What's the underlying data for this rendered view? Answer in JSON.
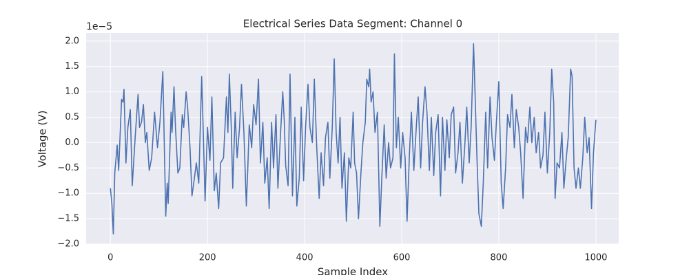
{
  "chart_data": {
    "type": "line",
    "title": "Electrical Series Data Segment: Channel 0",
    "xlabel": "Sample Index",
    "ylabel": "Voltage (V)",
    "y_offset_label": "1e−5",
    "color": "#4c72b0",
    "grid": true,
    "xlim": [
      -50,
      1047
    ],
    "ylim": [
      -2.0,
      2.16
    ],
    "xticks": [
      0,
      200,
      400,
      600,
      800,
      1000
    ],
    "yticks": [
      {
        "value": -2,
        "label": "−2.0"
      },
      {
        "value": -1.5,
        "label": "−1.5"
      },
      {
        "value": -1,
        "label": "−1.0"
      },
      {
        "value": -0.5,
        "label": "−0.5"
      },
      {
        "value": 0,
        "label": "0.0"
      },
      0.5,
      {
        "value": 1,
        "label": "1.0"
      },
      1.5,
      {
        "value": 2,
        "label": "2.0"
      }
    ],
    "x": [
      0,
      3,
      6,
      9,
      14,
      17,
      23,
      26,
      28,
      32,
      36,
      41,
      45,
      51,
      57,
      60,
      64,
      68,
      72,
      75,
      80,
      85,
      91,
      97,
      102,
      108,
      114,
      117,
      119,
      125,
      127,
      131,
      134,
      139,
      143,
      148,
      151,
      156,
      159,
      164,
      168,
      173,
      177,
      182,
      188,
      191,
      195,
      200,
      205,
      209,
      214,
      218,
      223,
      227,
      233,
      239,
      242,
      245,
      249,
      252,
      257,
      261,
      266,
      270,
      275,
      280,
      283,
      286,
      291,
      295,
      300,
      305,
      309,
      314,
      318,
      323,
      327,
      332,
      336,
      341,
      345,
      350,
      355,
      358,
      361,
      366,
      370,
      375,
      380,
      384,
      389,
      393,
      398,
      402,
      407,
      411,
      416,
      420,
      425,
      430,
      434,
      439,
      443,
      448,
      452,
      457,
      461,
      465,
      469,
      473,
      477,
      482,
      486,
      491,
      495,
      500,
      503,
      507,
      511,
      516,
      520,
      525,
      528,
      532,
      534,
      537,
      541,
      545,
      550,
      555,
      559,
      564,
      568,
      573,
      577,
      582,
      585,
      589,
      593,
      598,
      602,
      607,
      611,
      616,
      620,
      625,
      630,
      634,
      639,
      643,
      648,
      652,
      657,
      661,
      666,
      670,
      675,
      680,
      684,
      689,
      693,
      698,
      702,
      707,
      711,
      716,
      720,
      725,
      730,
      734,
      739,
      743,
      748,
      751,
      755,
      759,
      764,
      768,
      773,
      777,
      782,
      786,
      791,
      795,
      800,
      805,
      809,
      814,
      818,
      823,
      827,
      832,
      836,
      841,
      845,
      850,
      855,
      859,
      864,
      868,
      873,
      877,
      882,
      886,
      891,
      895,
      900,
      905,
      909,
      913,
      916,
      920,
      925,
      930,
      934,
      939,
      943,
      948,
      951,
      955,
      959,
      964,
      968,
      973,
      977,
      982,
      986,
      991,
      995,
      1000
    ],
    "values": [
      -0.9,
      -1.2,
      -1.8,
      -0.6,
      -0.05,
      -0.55,
      0.85,
      0.8,
      1.05,
      -0.4,
      0.3,
      0.65,
      -0.85,
      0.1,
      0.95,
      0.3,
      0.4,
      0.75,
      0.0,
      0.2,
      -0.55,
      -0.3,
      0.6,
      -0.1,
      0.4,
      1.4,
      -1.45,
      -0.8,
      -1.2,
      0.6,
      0.2,
      1.1,
      0.3,
      -0.6,
      -0.5,
      0.55,
      0.3,
      1.0,
      0.7,
      -0.1,
      -1.05,
      -0.7,
      -0.4,
      -0.8,
      1.3,
      0.3,
      -1.15,
      0.3,
      -0.35,
      0.9,
      -0.95,
      -0.6,
      -1.3,
      -0.4,
      -0.3,
      0.9,
      0.2,
      1.35,
      0.3,
      -0.9,
      0.6,
      -0.3,
      0.3,
      1.15,
      0.2,
      -1.25,
      -0.5,
      0.35,
      -0.1,
      0.75,
      0.35,
      1.25,
      -0.4,
      0.4,
      -0.8,
      -0.3,
      -1.3,
      0.4,
      -0.5,
      0.55,
      -0.9,
      0.1,
      1.0,
      0.45,
      -0.45,
      -0.85,
      1.35,
      -1.05,
      0.5,
      -1.25,
      -0.7,
      0.7,
      -0.75,
      0.3,
      1.15,
      0.3,
      0.0,
      1.25,
      -0.1,
      -1.1,
      -0.2,
      -0.85,
      0.1,
      0.4,
      -0.7,
      0.3,
      1.65,
      0.2,
      -0.4,
      0.5,
      -0.9,
      -0.2,
      -1.55,
      -0.3,
      -0.5,
      0.6,
      -0.4,
      -0.6,
      -1.5,
      -0.6,
      0.0,
      0.4,
      1.25,
      1.1,
      1.45,
      0.8,
      1.0,
      0.2,
      0.6,
      -1.65,
      -0.7,
      0.35,
      -0.7,
      0.0,
      -0.5,
      -0.3,
      1.75,
      -0.1,
      0.5,
      -0.5,
      0.2,
      -0.3,
      -1.55,
      -0.2,
      0.6,
      -0.55,
      0.3,
      0.9,
      -0.5,
      0.4,
      1.1,
      0.6,
      -0.55,
      0.5,
      -0.65,
      0.2,
      0.55,
      -1.05,
      0.5,
      -0.55,
      0.45,
      -0.3,
      0.55,
      0.7,
      -0.6,
      -0.2,
      0.4,
      -0.8,
      -0.05,
      0.7,
      -0.4,
      0.3,
      1.95,
      1.0,
      -0.3,
      -1.4,
      -1.65,
      -0.8,
      0.6,
      -0.5,
      0.9,
      0.1,
      -0.35,
      0.4,
      1.2,
      -0.8,
      -1.3,
      -0.5,
      0.55,
      0.3,
      0.95,
      -0.1,
      0.65,
      0.3,
      -0.2,
      -1.1,
      0.3,
      0.0,
      0.7,
      0.0,
      0.5,
      -0.2,
      0.2,
      -0.5,
      -0.25,
      0.6,
      -0.6,
      0.2,
      1.45,
      0.8,
      -1.1,
      -0.4,
      -0.5,
      0.2,
      -0.9,
      -0.3,
      0.1,
      1.45,
      1.3,
      -0.5,
      -0.9,
      -0.5,
      -0.9,
      -0.3,
      0.5,
      -0.2,
      0.1,
      -1.3,
      -0.2,
      0.45
    ]
  }
}
